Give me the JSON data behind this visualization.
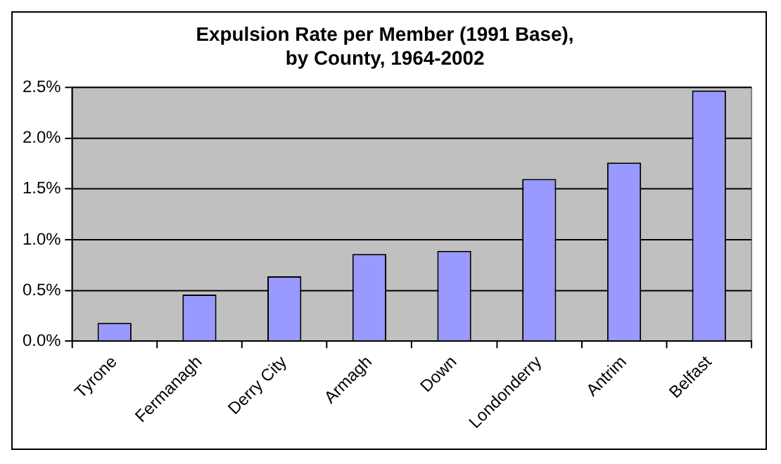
{
  "chart_data": {
    "type": "bar",
    "title": "Expulsion Rate per Member (1991 Base),\nby County, 1964-2002",
    "categories": [
      "Tyrone",
      "Fermanagh",
      "Derry City",
      "Armagh",
      "Down",
      "Londonderry",
      "Antrim",
      "Belfast"
    ],
    "values": [
      0.18,
      0.46,
      0.64,
      0.86,
      0.89,
      1.6,
      1.76,
      2.47
    ],
    "color": "#9999ff",
    "ylim": [
      0,
      2.5
    ],
    "yticks": [
      {
        "value": 0,
        "label": "0.0%"
      },
      {
        "value": 0.5,
        "label": "0.5%"
      },
      {
        "value": 1,
        "label": "1.0%"
      },
      {
        "value": 1.5,
        "label": "1.5%"
      },
      {
        "value": 2,
        "label": "2.0%"
      },
      {
        "value": 2.5,
        "label": "2.5%"
      }
    ],
    "grid": "y",
    "legend": false
  }
}
